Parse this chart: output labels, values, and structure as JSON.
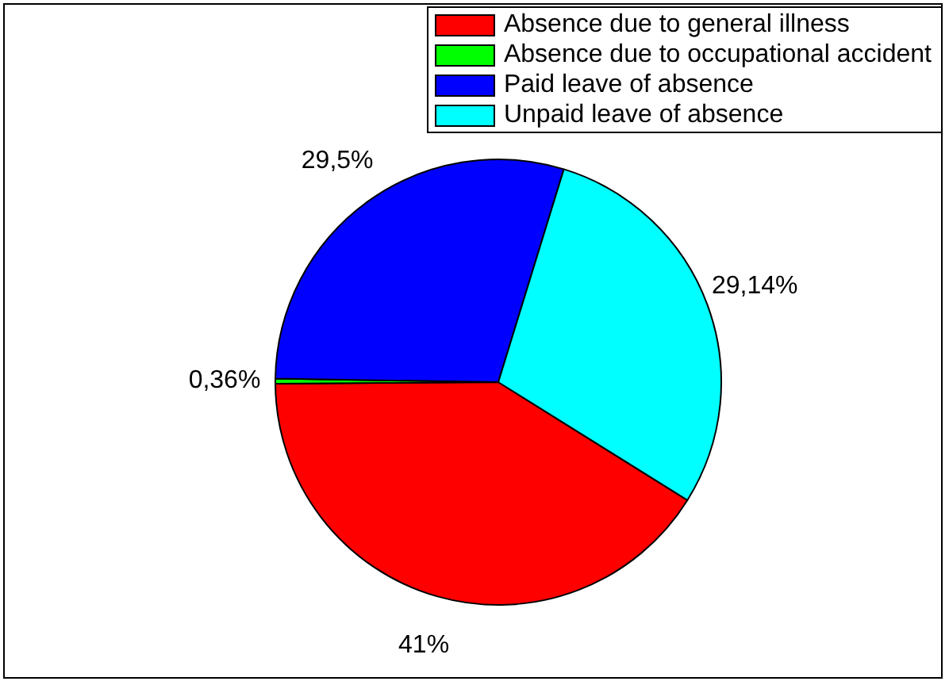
{
  "chart_data": {
    "type": "pie",
    "categories": [
      "Absence due to general illness",
      "Absence due to occupational accident",
      "Paid leave of absence",
      "Unpaid leave of absence"
    ],
    "values": [
      41,
      0.36,
      29.5,
      29.14
    ],
    "colors": [
      "#ff0000",
      "#00ff00",
      "#0000ff",
      "#00ffff"
    ],
    "value_labels": [
      "41%",
      "0,36%",
      "29,5%",
      "29,14%"
    ],
    "legend": "top right"
  }
}
